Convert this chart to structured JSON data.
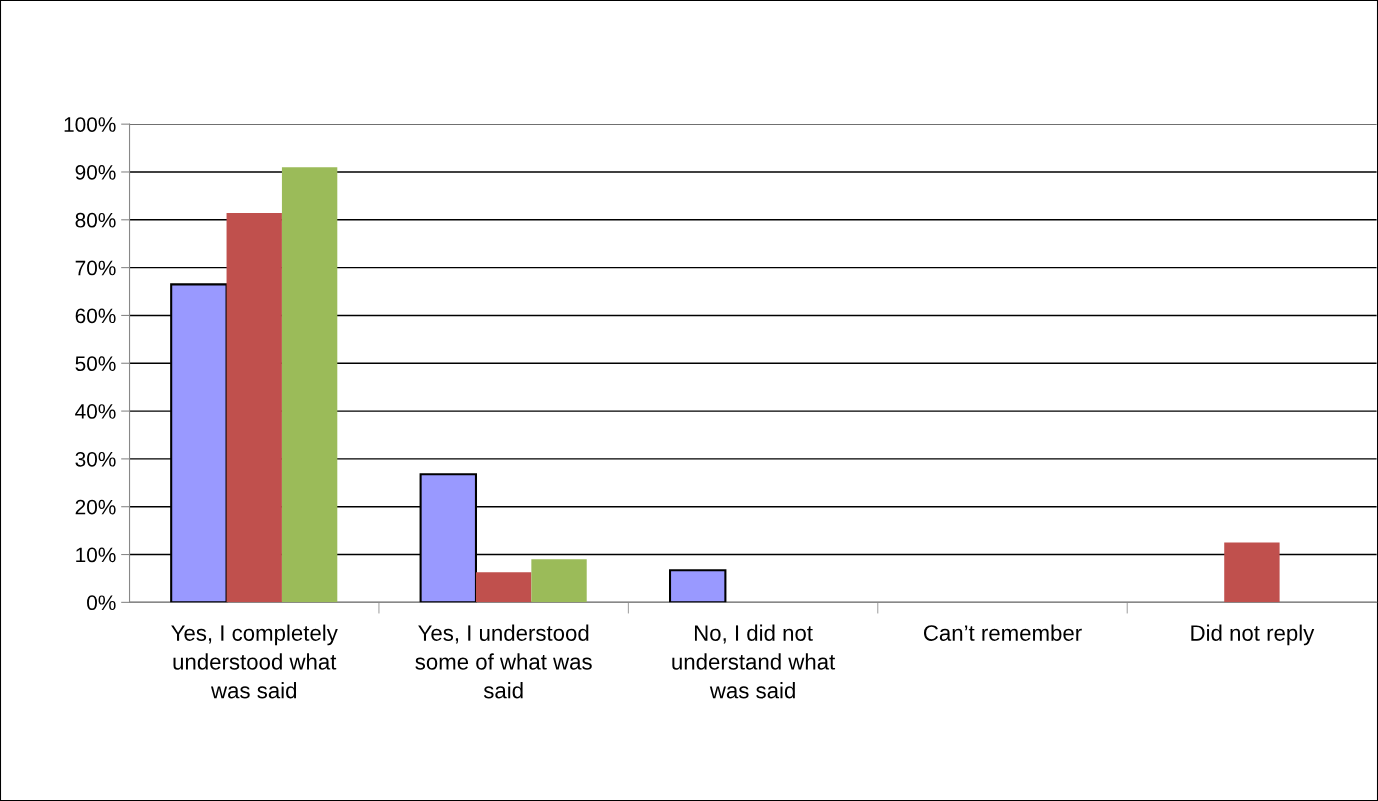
{
  "chart_data": {
    "type": "bar",
    "categories": [
      "Yes, I completely\nunderstood what\nwas said",
      "Yes, I understood\nsome of what was\nsaid",
      "No, I did not\nunderstand what\nwas said",
      "Can’t remember",
      "Did not reply"
    ],
    "series": [
      {
        "color": "#9999ff",
        "values": [
          66.5,
          26.8,
          6.7,
          0,
          0
        ]
      },
      {
        "color": "#c0504d",
        "values": [
          81.4,
          6.3,
          0,
          0,
          12.5
        ]
      },
      {
        "color": "#9bbb59",
        "values": [
          91.0,
          9.0,
          0,
          0,
          0
        ]
      }
    ],
    "ylim": [
      0,
      100
    ],
    "yticks": [
      {
        "value": 0,
        "label": "0%"
      },
      {
        "value": 10,
        "label": "10%"
      },
      {
        "value": 20,
        "label": "20%"
      },
      {
        "value": 30,
        "label": "30%"
      },
      {
        "value": 40,
        "label": "40%"
      },
      {
        "value": 50,
        "label": "50%"
      },
      {
        "value": 60,
        "label": "60%"
      },
      {
        "value": 70,
        "label": "70%"
      },
      {
        "value": 80,
        "label": "80%"
      },
      {
        "value": 90,
        "label": "90%"
      },
      {
        "value": 100,
        "label": "100%"
      }
    ],
    "grid": "y",
    "legend": false
  }
}
